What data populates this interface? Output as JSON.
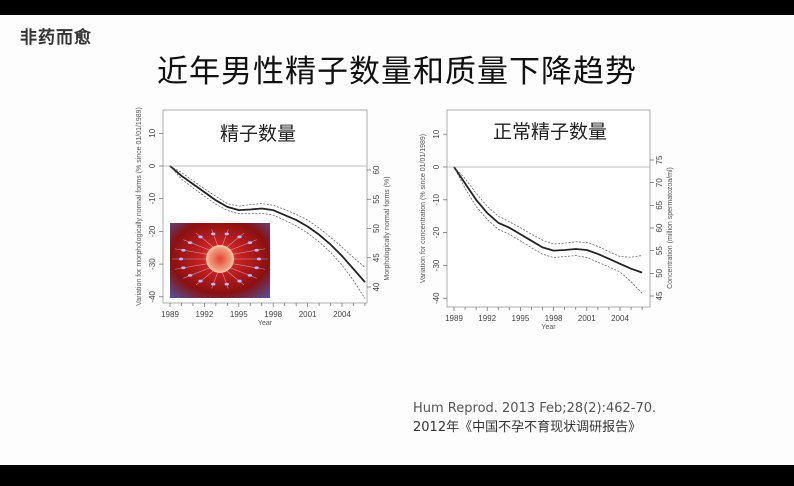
{
  "header": {
    "brand": "非药而愈",
    "title": "近年男性精子数量和质量下降趋势"
  },
  "reference": {
    "line1": "Hum Reprod. 2013 Feb;28(2):462-70.",
    "line2": "2012年《中国不孕不育现状调研报告》"
  },
  "chart_data": [
    {
      "type": "line",
      "title": "精子数量",
      "xlabel": "Year",
      "ylabel": "Variation for morphologically normal forms (% since 01/01/1989)",
      "ylabel_right": "Morphologically normal forms (%)",
      "xticks": [
        "1989",
        "1992",
        "1995",
        "1998",
        "2001",
        "2004"
      ],
      "yticks": [
        "10",
        "0",
        "-10",
        "-20",
        "-30",
        "-40"
      ],
      "yticks_right": [
        "60",
        "55",
        "50",
        "45",
        "40"
      ],
      "xlim": [
        1989,
        2006
      ],
      "ylim": [
        -42,
        15
      ],
      "x": [
        1989,
        1990,
        1991,
        1992,
        1993,
        1994,
        1995,
        1996,
        1997,
        1998,
        1999,
        2000,
        2001,
        2002,
        2003,
        2004,
        2005,
        2006
      ],
      "series": [
        {
          "name": "estimate",
          "values": [
            0,
            -3,
            -5.5,
            -8,
            -10.5,
            -12.5,
            -13.5,
            -13.3,
            -13,
            -13.5,
            -15,
            -16.5,
            -18.5,
            -21,
            -24,
            -27.5,
            -31.5,
            -35.5
          ]
        },
        {
          "name": "upper CI",
          "values": [
            0,
            -2,
            -4.5,
            -7,
            -9.3,
            -11.5,
            -12.3,
            -11.8,
            -11.5,
            -12,
            -13.3,
            -14.8,
            -16.5,
            -19,
            -21.8,
            -24.8,
            -28,
            -31
          ]
        },
        {
          "name": "lower CI",
          "values": [
            0,
            -4,
            -6.7,
            -9.2,
            -11.7,
            -13.6,
            -14.6,
            -14.6,
            -14.5,
            -15,
            -16.6,
            -18.3,
            -20.5,
            -23.2,
            -26.4,
            -30.3,
            -35,
            -40.5
          ]
        }
      ],
      "reference_line": 0
    },
    {
      "type": "line",
      "title": "正常精子数量",
      "xlabel": "Year",
      "ylabel": "Variation for concentration (% since 01/01/1989)",
      "ylabel_right": "Concentration (million spermatozoa/ml)",
      "xticks": [
        "1989",
        "1992",
        "1995",
        "1998",
        "2001",
        "2004"
      ],
      "yticks": [
        "10",
        "0",
        "-10",
        "-20",
        "-30",
        "-40"
      ],
      "yticks_right": [
        "75",
        "70",
        "65",
        "60",
        "55",
        "50",
        "45"
      ],
      "xlim": [
        1989,
        2006
      ],
      "ylim": [
        -42,
        15
      ],
      "x": [
        1989,
        1990,
        1991,
        1992,
        1993,
        1994,
        1995,
        1996,
        1997,
        1998,
        1999,
        2000,
        2001,
        2002,
        2003,
        2004,
        2005,
        2006
      ],
      "series": [
        {
          "name": "estimate",
          "values": [
            0,
            -5,
            -10,
            -14,
            -17,
            -18.5,
            -20.5,
            -22.5,
            -24.5,
            -25.5,
            -25.3,
            -25,
            -25.3,
            -26.5,
            -28,
            -29.5,
            -31,
            -32.2
          ]
        },
        {
          "name": "upper CI",
          "values": [
            0,
            -3.5,
            -8,
            -12,
            -15,
            -16.7,
            -18.5,
            -20.5,
            -22.3,
            -23.5,
            -23.2,
            -22.8,
            -23,
            -24.2,
            -25.8,
            -27.3,
            -27.5,
            -27
          ]
        },
        {
          "name": "lower CI",
          "values": [
            0,
            -6.5,
            -12,
            -16,
            -19,
            -20.5,
            -22.5,
            -24.6,
            -26.6,
            -27.6,
            -27.3,
            -27,
            -27.6,
            -29,
            -30.5,
            -32,
            -35,
            -38.5
          ]
        }
      ],
      "reference_line": 0
    }
  ]
}
